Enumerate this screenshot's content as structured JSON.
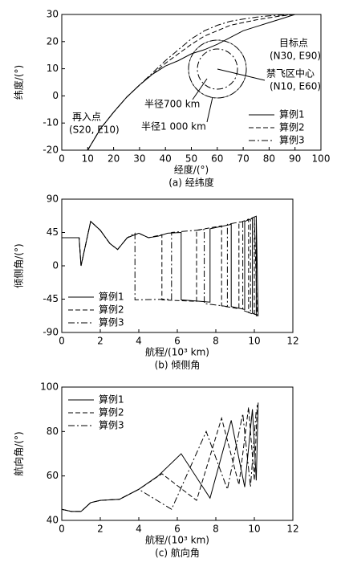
{
  "chart_data": [
    {
      "type": "line",
      "caption": "(a) 经纬度",
      "xlabel": "经度/(°)",
      "ylabel": "纬度/(°)",
      "xlim": [
        0,
        100
      ],
      "xticks": [
        0,
        10,
        20,
        30,
        40,
        50,
        60,
        70,
        80,
        90,
        100
      ],
      "ylim": [
        -20,
        30
      ],
      "yticks": [
        -20,
        -10,
        0,
        10,
        20,
        30
      ],
      "legend": "lower right",
      "annotations": [
        "再入点",
        "(S20, E10)",
        "目标点",
        "(N30, E90)",
        "禁飞区中心",
        "(N10, E60)",
        "半径700 km",
        "半径1 000 km"
      ],
      "series": [
        {
          "name": "算例1",
          "color": "#000000",
          "dash": "solid",
          "x": [
            10,
            15,
            20,
            25,
            30,
            35,
            40,
            45,
            50,
            55,
            60,
            65,
            70,
            75,
            80,
            85,
            90
          ],
          "values": [
            -20,
            -12,
            -6,
            -0.5,
            4,
            8,
            11,
            13,
            15.5,
            17,
            19,
            21.5,
            24,
            25.5,
            27,
            28.5,
            30
          ]
        },
        {
          "name": "算例2",
          "color": "#000000",
          "dash": "dashed",
          "x": [
            10,
            15,
            20,
            25,
            30,
            35,
            40,
            45,
            50,
            55,
            60,
            65,
            70,
            75,
            80,
            85,
            90
          ],
          "values": [
            -20,
            -12,
            -6,
            -0.5,
            4,
            8,
            12,
            15.5,
            19,
            22,
            24,
            26,
            27,
            28,
            28.8,
            29.5,
            30
          ]
        },
        {
          "name": "算例3",
          "color": "#000000",
          "dash": "dashdot",
          "x": [
            10,
            15,
            20,
            25,
            30,
            35,
            40,
            45,
            50,
            55,
            60,
            65,
            70,
            75,
            80,
            85,
            90
          ],
          "values": [
            -20,
            -12,
            -6,
            -0.5,
            4,
            8.5,
            13,
            17,
            21,
            24,
            26,
            27.5,
            28.3,
            29,
            29.5,
            29.8,
            30
          ]
        }
      ]
    },
    {
      "type": "line",
      "caption": "(b) 倾侧角",
      "xlabel": "航程/(10³ km)",
      "ylabel": "倾侧角/(°)",
      "xlim": [
        0,
        12
      ],
      "xticks": [
        0,
        2,
        4,
        6,
        8,
        10,
        12
      ],
      "ylim": [
        -90,
        90
      ],
      "yticks": [
        -90,
        -45,
        0,
        45,
        90
      ],
      "legend": "lower left",
      "annotations": [],
      "series": [
        {
          "name": "算例1",
          "color": "#000000",
          "dash": "solid",
          "x": [
            0,
            0.9,
            1.0,
            1.5,
            2.0,
            2.5,
            2.9,
            3.4,
            4.0,
            4.5,
            5.0,
            5.5,
            6.2,
            6.2,
            7.7,
            7.7,
            8.8,
            8.8,
            9.5,
            9.5,
            9.9,
            9.9,
            10.1,
            10.1,
            10.2
          ],
          "values": [
            38,
            38,
            0,
            60,
            48,
            30,
            22,
            38,
            44,
            38,
            40,
            44,
            45,
            -46,
            -49,
            50,
            56,
            -55,
            -59,
            60,
            64,
            -64,
            -66,
            66,
            -68
          ]
        },
        {
          "name": "算例2",
          "color": "#000000",
          "dash": "dashed",
          "x": [
            0,
            0.9,
            1.0,
            1.5,
            2.0,
            2.5,
            2.9,
            3.4,
            4.0,
            4.5,
            5.2,
            5.2,
            7.0,
            7.0,
            8.3,
            8.3,
            9.2,
            9.2,
            9.7,
            9.7,
            10.0,
            10.0,
            10.15
          ],
          "values": [
            38,
            38,
            0,
            60,
            48,
            30,
            22,
            38,
            44,
            38,
            42,
            -46,
            -48,
            48,
            54,
            -54,
            -58,
            58,
            63,
            -63,
            -66,
            66,
            -68
          ]
        },
        {
          "name": "算例3",
          "color": "#000000",
          "dash": "dashdot",
          "x": [
            0,
            0.9,
            1.0,
            1.5,
            2.0,
            2.5,
            2.9,
            3.4,
            3.8,
            3.8,
            5.7,
            5.7,
            7.4,
            7.4,
            8.6,
            8.6,
            9.4,
            9.4,
            9.8,
            9.8,
            10.1,
            10.1
          ],
          "values": [
            38,
            38,
            0,
            60,
            48,
            30,
            22,
            38,
            44,
            -46,
            -45,
            45,
            49,
            -51,
            -55,
            56,
            60,
            -60,
            -64,
            64,
            67,
            -68
          ]
        }
      ]
    },
    {
      "type": "line",
      "caption": "(c) 航向角",
      "xlabel": "航程/(10³ km)",
      "ylabel": "航向角/(°)",
      "xlim": [
        0,
        12
      ],
      "xticks": [
        0,
        2,
        4,
        6,
        8,
        10,
        12
      ],
      "ylim": [
        40,
        100
      ],
      "yticks": [
        40,
        60,
        80,
        100
      ],
      "legend": "upper left",
      "annotations": [],
      "series": [
        {
          "name": "算例1",
          "color": "#000000",
          "dash": "solid",
          "x": [
            0,
            0.5,
            1.0,
            1.5,
            2.0,
            3.0,
            4.0,
            5.0,
            6.2,
            7.7,
            8.8,
            9.5,
            9.9,
            10.1,
            10.2
          ],
          "values": [
            45,
            44,
            44,
            48,
            49,
            49.5,
            54,
            60,
            70,
            50,
            85,
            55,
            90,
            58,
            93
          ]
        },
        {
          "name": "算例2",
          "color": "#000000",
          "dash": "dashed",
          "x": [
            0,
            0.5,
            1.0,
            1.5,
            2.0,
            3.0,
            4.0,
            5.2,
            7.0,
            8.3,
            9.2,
            9.7,
            10.0,
            10.15
          ],
          "values": [
            45,
            44,
            44,
            48,
            49,
            49.5,
            54,
            61,
            49,
            86,
            56,
            91,
            58,
            92
          ]
        },
        {
          "name": "算例3",
          "color": "#000000",
          "dash": "dashdot",
          "x": [
            0,
            0.5,
            1.0,
            1.5,
            2.0,
            3.0,
            4.0,
            5.7,
            7.5,
            8.6,
            9.4,
            9.8,
            10.1
          ],
          "values": [
            45,
            44,
            44,
            48,
            49,
            49.5,
            54,
            45,
            80,
            54,
            88,
            55,
            90
          ]
        }
      ]
    }
  ]
}
